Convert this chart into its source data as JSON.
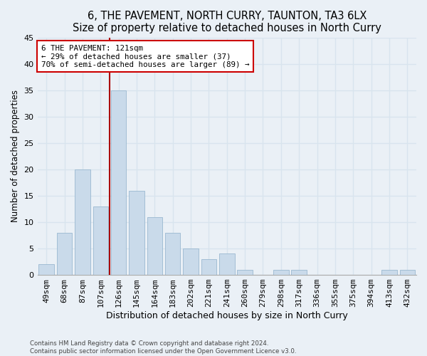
{
  "title": "6, THE PAVEMENT, NORTH CURRY, TAUNTON, TA3 6LX",
  "subtitle": "Size of property relative to detached houses in North Curry",
  "xlabel": "Distribution of detached houses by size in North Curry",
  "ylabel": "Number of detached properties",
  "categories": [
    "49sqm",
    "68sqm",
    "87sqm",
    "107sqm",
    "126sqm",
    "145sqm",
    "164sqm",
    "183sqm",
    "202sqm",
    "221sqm",
    "241sqm",
    "260sqm",
    "279sqm",
    "298sqm",
    "317sqm",
    "336sqm",
    "355sqm",
    "375sqm",
    "394sqm",
    "413sqm",
    "432sqm"
  ],
  "values": [
    2,
    8,
    20,
    13,
    35,
    16,
    11,
    8,
    5,
    3,
    4,
    1,
    0,
    1,
    1,
    0,
    0,
    0,
    0,
    1,
    1
  ],
  "bar_color": "#c9daea",
  "bar_edge_color": "#9ab8d0",
  "vline_color": "#aa0000",
  "vline_x_index": 4,
  "ylim": [
    0,
    45
  ],
  "yticks": [
    0,
    5,
    10,
    15,
    20,
    25,
    30,
    35,
    40,
    45
  ],
  "annotation_text": "6 THE PAVEMENT: 121sqm\n← 29% of detached houses are smaller (37)\n70% of semi-detached houses are larger (89) →",
  "annotation_box_facecolor": "#ffffff",
  "annotation_border_color": "#cc0000",
  "footer1": "Contains HM Land Registry data © Crown copyright and database right 2024.",
  "footer2": "Contains public sector information licensed under the Open Government Licence v3.0.",
  "background_color": "#eaf0f6",
  "grid_color": "#d8e4ee",
  "title_fontsize": 10.5,
  "tick_fontsize": 8,
  "ylabel_fontsize": 8.5,
  "xlabel_fontsize": 9
}
